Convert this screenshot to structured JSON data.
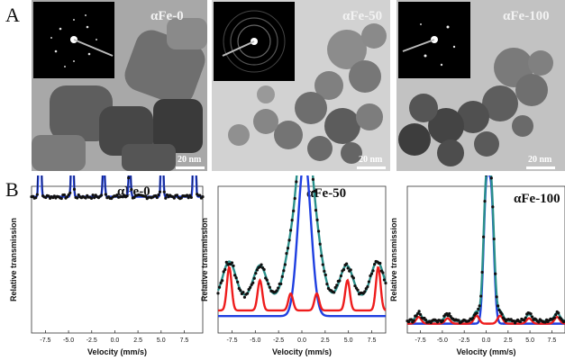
{
  "panel_labels": {
    "a": "A",
    "b": "B"
  },
  "tem_panels": [
    {
      "title": "αFe-0",
      "scale": "20 nm"
    },
    {
      "title": "αFe-50",
      "scale": "20 nm"
    },
    {
      "title": "αFe-100",
      "scale": "20 nm"
    }
  ],
  "colors": {
    "data": "#111111",
    "blue": "#1f3fe0",
    "red": "#ee1c1c",
    "teal": "#2a8f8a"
  },
  "chart_data": [
    {
      "type": "line",
      "title": "αFe-0",
      "xlabel": "Velocity (mm/s)",
      "ylabel": "Relative transmission",
      "xticks": [
        "-7.5",
        "-5.0",
        "-2.5",
        "0.0",
        "2.5",
        "5.0",
        "7.5"
      ],
      "xlim": [
        -9,
        9.5
      ],
      "series": [
        {
          "color": "#1f3fe0",
          "baseline": 1.0,
          "sigma": 0.1,
          "peaks": [
            [
              -8.1,
              1.0
            ],
            [
              -4.6,
              0.65
            ],
            [
              -1.2,
              0.3
            ],
            [
              1.6,
              0.3
            ],
            [
              5.1,
              0.65
            ],
            [
              8.6,
              1.0
            ]
          ]
        }
      ]
    },
    {
      "type": "line",
      "title": "αFe-50",
      "xlabel": "Velocity (mm/s)",
      "ylabel": "Relative transmission",
      "xticks": [
        "-7.5",
        "-5.0",
        "-2.5",
        "0.0",
        "2.5",
        "5.0",
        "7.5"
      ],
      "xlim": [
        -9,
        9
      ],
      "series": [
        {
          "color": "#1f3fe0",
          "baseline": 0.03,
          "sigma": 0.6,
          "peaks": [
            [
              0.0,
              0.5
            ],
            [
              0.6,
              0.45
            ]
          ]
        },
        {
          "color": "#ee1c1c",
          "baseline": 0.06,
          "sigma": 0.25,
          "peaks": [
            [
              -7.8,
              0.23
            ],
            [
              -4.5,
              0.16
            ],
            [
              -1.2,
              0.09
            ],
            [
              1.6,
              0.09
            ],
            [
              4.9,
              0.16
            ],
            [
              8.2,
              0.23
            ]
          ]
        },
        {
          "color": "#2a8f8a",
          "baseline": 0.12,
          "sigma": 0.7,
          "peaks": [
            [
              -7.8,
              0.2
            ],
            [
              -4.5,
              0.18
            ],
            [
              -1.3,
              0.22
            ],
            [
              0.0,
              0.55
            ],
            [
              0.6,
              0.5
            ],
            [
              1.7,
              0.22
            ],
            [
              4.8,
              0.18
            ],
            [
              8.1,
              0.2
            ]
          ]
        }
      ]
    },
    {
      "type": "line",
      "title": "αFe-100",
      "xlabel": "Velocity (mm/s)",
      "ylabel": "Relative transmission",
      "xticks": [
        "-7.5",
        "-5.0",
        "-2.5",
        "0.0",
        "2.5",
        "5.0",
        "7.5"
      ],
      "xlim": [
        -9,
        9
      ],
      "series": [
        {
          "color": "#1f3fe0",
          "baseline": 0.02,
          "sigma": 0.3,
          "peaks": [
            [
              0.0,
              0.95
            ],
            [
              0.6,
              0.9
            ]
          ]
        },
        {
          "color": "#ee1c1c",
          "baseline": 0.02,
          "sigma": 0.3,
          "peaks": [
            [
              -7.7,
              0.05
            ],
            [
              -4.4,
              0.04
            ],
            [
              -1.1,
              0.06
            ],
            [
              1.6,
              0.06
            ],
            [
              4.9,
              0.04
            ],
            [
              8.1,
              0.05
            ]
          ]
        },
        {
          "color": "#2a8f8a",
          "baseline": 0.04,
          "sigma": 0.32,
          "peaks": [
            [
              -7.7,
              0.06
            ],
            [
              -4.4,
              0.05
            ],
            [
              -1.1,
              0.07
            ],
            [
              0.0,
              0.95
            ],
            [
              0.6,
              0.9
            ],
            [
              1.6,
              0.07
            ],
            [
              4.9,
              0.05
            ],
            [
              8.1,
              0.06
            ]
          ]
        }
      ]
    }
  ]
}
